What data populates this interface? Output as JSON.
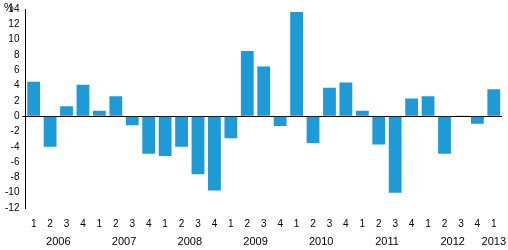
{
  "chart_data": {
    "type": "bar",
    "y_label": "%",
    "categories": [
      "1",
      "2",
      "3",
      "4",
      "1",
      "2",
      "3",
      "4",
      "1",
      "2",
      "3",
      "4",
      "1",
      "2",
      "3",
      "4",
      "1",
      "2",
      "3",
      "4",
      "1",
      "2",
      "3",
      "4",
      "1",
      "2",
      "3",
      "4",
      "1"
    ],
    "years": [
      "2006",
      "2007",
      "2008",
      "2009",
      "2010",
      "2011",
      "2012",
      "2013"
    ],
    "values": [
      4.5,
      -4.0,
      1.3,
      4.1,
      0.7,
      2.6,
      -1.2,
      -4.9,
      -5.2,
      -4.0,
      -7.6,
      -9.7,
      -2.9,
      8.5,
      6.5,
      -1.3,
      13.6,
      -3.5,
      3.7,
      4.4,
      0.7,
      -3.7,
      -10.0,
      2.3,
      2.6,
      -4.9,
      0.1,
      -1.0,
      3.5
    ],
    "color": "#1e9bd7",
    "ylim": [
      -12,
      14
    ],
    "yticks": [
      -12,
      -10,
      -8,
      -6,
      -4,
      -2,
      0,
      2,
      4,
      6,
      8,
      10,
      12,
      14
    ],
    "grid": false
  }
}
